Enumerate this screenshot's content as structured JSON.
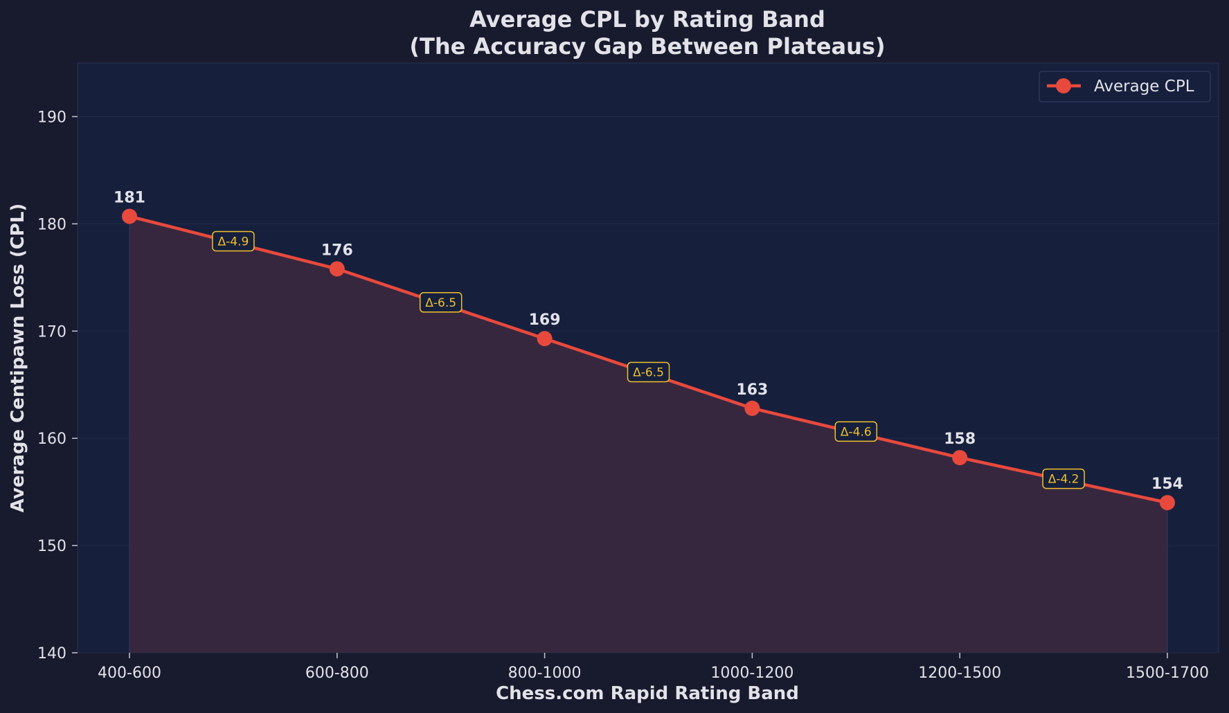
{
  "chart_data": {
    "type": "line",
    "title": "Average CPL by Rating Band",
    "subtitle": "(The Accuracy Gap Between Plateaus)",
    "xlabel": "Chess.com Rapid Rating Band",
    "ylabel": "Average Centipawn Loss (CPL)",
    "categories": [
      "400-600",
      "600-800",
      "800-1000",
      "1000-1200",
      "1200-1500",
      "1500-1700"
    ],
    "series": [
      {
        "name": "Average CPL",
        "values": [
          180.7,
          175.8,
          169.3,
          162.8,
          158.2,
          154.0
        ],
        "labels": [
          "181",
          "176",
          "169",
          "163",
          "158",
          "154"
        ],
        "color": "#e8493d"
      }
    ],
    "deltas": [
      "Δ-4.9",
      "Δ-6.5",
      "Δ-6.5",
      "Δ-4.6",
      "Δ-4.2"
    ],
    "ylim": [
      140,
      195
    ],
    "yticks": [
      140,
      150,
      160,
      170,
      180,
      190
    ],
    "grid": true,
    "legend": "top-right",
    "colors": {
      "background": "#181a2e",
      "plot_background": "#16203d",
      "line": "#e8493d",
      "fill": "#36273f",
      "delta_box": "#f2c12e",
      "text": "#e2e2e8"
    }
  }
}
